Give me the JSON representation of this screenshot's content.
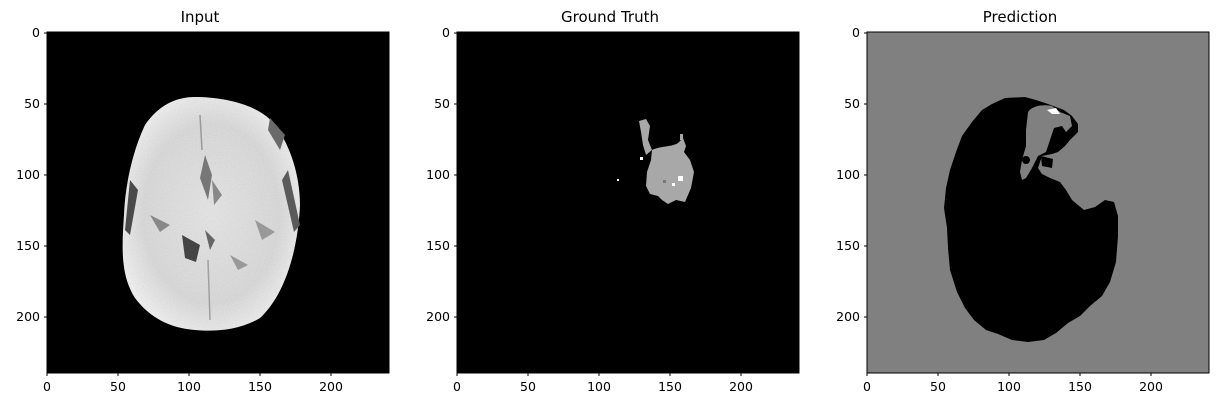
{
  "figure": {
    "panels": [
      {
        "title": "Input",
        "xticks": [
          "0",
          "50",
          "100",
          "150",
          "200"
        ],
        "yticks": [
          "0",
          "50",
          "100",
          "150",
          "200"
        ],
        "image_type": "grayscale brain MRI axial slice"
      },
      {
        "title": "Ground Truth",
        "xticks": [
          "0",
          "50",
          "100",
          "150",
          "200"
        ],
        "yticks": [
          "0",
          "50",
          "100",
          "150",
          "200"
        ],
        "image_type": "segmentation mask"
      },
      {
        "title": "Prediction",
        "xticks": [
          "0",
          "50",
          "100",
          "150",
          "200"
        ],
        "yticks": [
          "0",
          "50",
          "100",
          "150",
          "200"
        ],
        "image_type": "segmentation mask"
      }
    ],
    "colors": {
      "background_black": "#000000",
      "mask_gray": "#a8a8a8",
      "prediction_background": "#808080",
      "highlight_white": "#ffffff"
    }
  }
}
